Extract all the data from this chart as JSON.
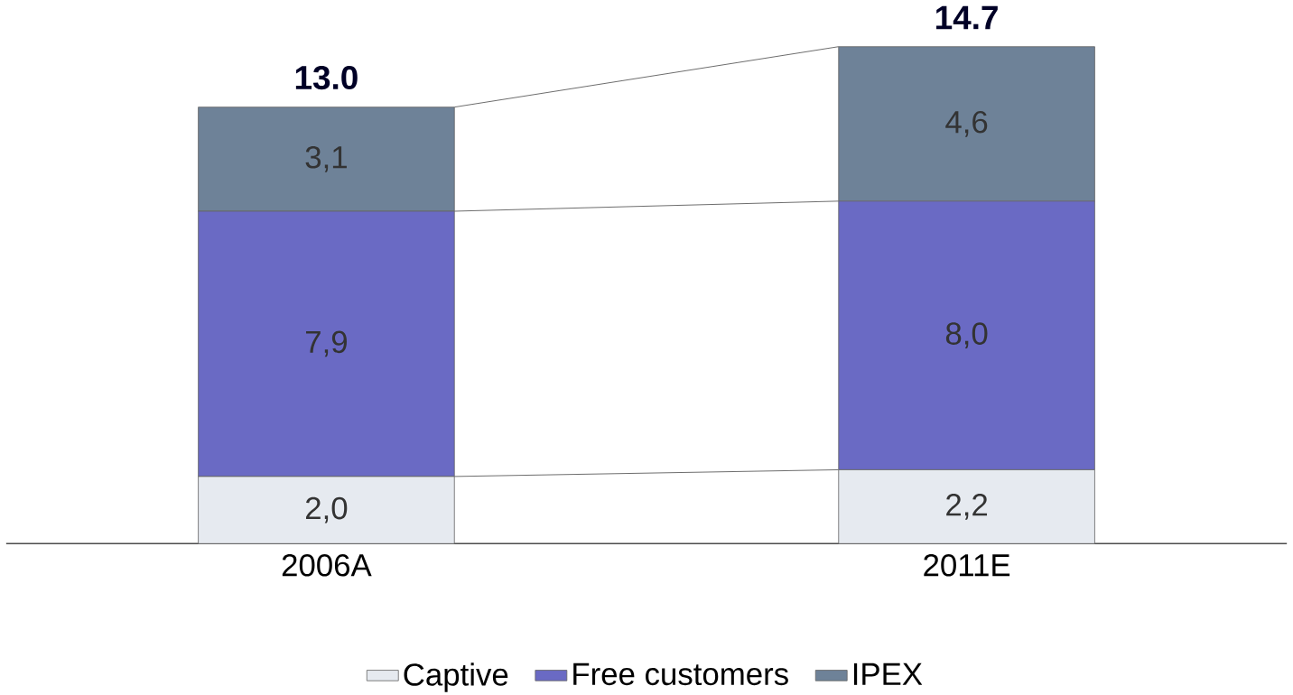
{
  "chart_data": {
    "type": "bar",
    "stacked": true,
    "categories": [
      "2006A",
      "2011E"
    ],
    "series": [
      {
        "name": "Captive",
        "color": "#e6eaf0",
        "values": [
          2.0,
          2.2
        ],
        "value_labels": [
          "2,0",
          "2,2"
        ]
      },
      {
        "name": "Free customers",
        "color": "#6a6ac4",
        "values": [
          7.9,
          8.0
        ],
        "value_labels": [
          "7,9",
          "8,0"
        ]
      },
      {
        "name": "IPEX",
        "color": "#6e8298",
        "values": [
          3.1,
          4.6
        ],
        "value_labels": [
          "3,1",
          "4,6"
        ]
      }
    ],
    "totals": [
      "13.0",
      "14.7"
    ],
    "legend": "bottom"
  }
}
